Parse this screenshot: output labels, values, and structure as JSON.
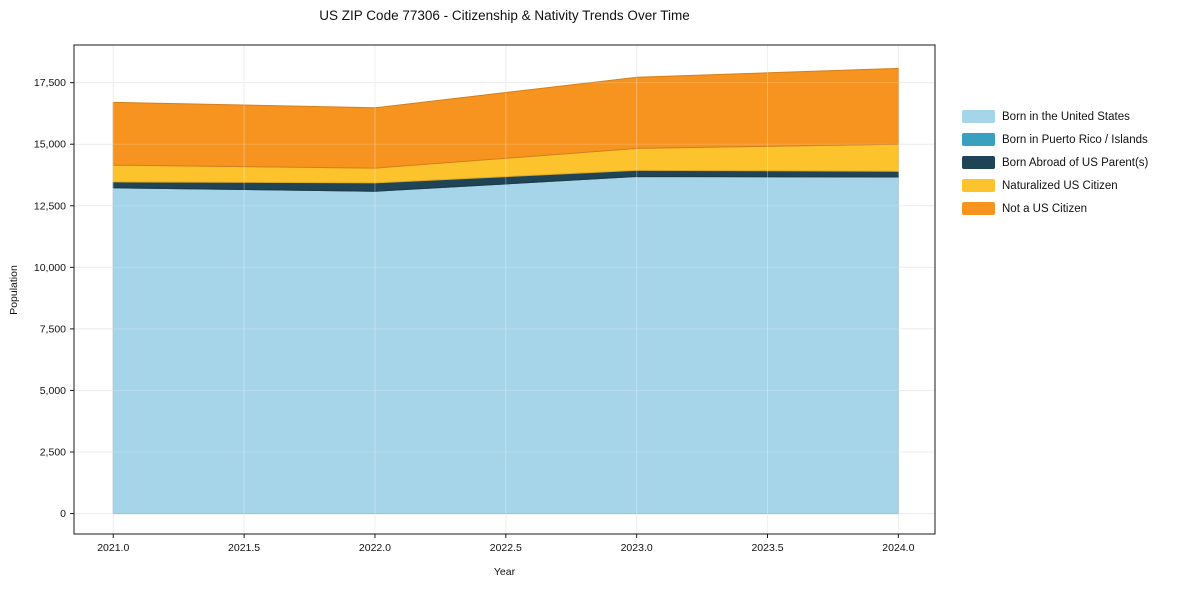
{
  "title": "US ZIP Code 77306 - Citizenship & Nativity Trends Over Time",
  "axes": {
    "x_label": "Year",
    "y_label": "Population"
  },
  "colors": {
    "background": "#ffffff",
    "grid": "#e8e8e8",
    "spine": "#1a1a1a",
    "text": "#111111"
  },
  "chart_data": {
    "type": "area",
    "stacked": true,
    "title": "US ZIP Code 77306 - Citizenship & Nativity Trends Over Time",
    "xlabel": "Year",
    "ylabel": "Population",
    "x": [
      2021,
      2022,
      2023,
      2024
    ],
    "series": [
      {
        "name": "Born in the United States",
        "color": "#a6d4e8",
        "values": [
          13230,
          13090,
          13690,
          13670
        ]
      },
      {
        "name": "Born in Puerto Rico / Islands",
        "color": "#39a0c0",
        "values": [
          0,
          0,
          0,
          0
        ]
      },
      {
        "name": "Born Abroad of US Parent(s)",
        "color": "#1f4456",
        "values": [
          240,
          340,
          250,
          230
        ]
      },
      {
        "name": "Naturalized US Citizen",
        "color": "#fcc32d",
        "values": [
          680,
          600,
          890,
          1100
        ]
      },
      {
        "name": "Not a US Citizen",
        "color": "#f79420",
        "values": [
          2550,
          2450,
          2890,
          3080
        ]
      }
    ],
    "stack_totals": [
      16700,
      16480,
      17720,
      18080
    ],
    "x_ticks": {
      "values": [
        2021.0,
        2021.5,
        2022.0,
        2022.5,
        2023.0,
        2023.5,
        2024.0
      ],
      "labels": [
        "2021.0",
        "2021.5",
        "2022.0",
        "2022.5",
        "2023.0",
        "2023.5",
        "2024.0"
      ]
    },
    "y_ticks": {
      "values": [
        0,
        2500,
        5000,
        7500,
        10000,
        12500,
        15000,
        17500
      ],
      "labels": [
        "0",
        "2,500",
        "5,000",
        "7,500",
        "10,000",
        "12,500",
        "15,000",
        "17,500"
      ]
    },
    "xlim": [
      2020.85,
      2024.14
    ],
    "ylim": [
      -830,
      19030
    ],
    "grid": true,
    "legend_position": "right"
  }
}
